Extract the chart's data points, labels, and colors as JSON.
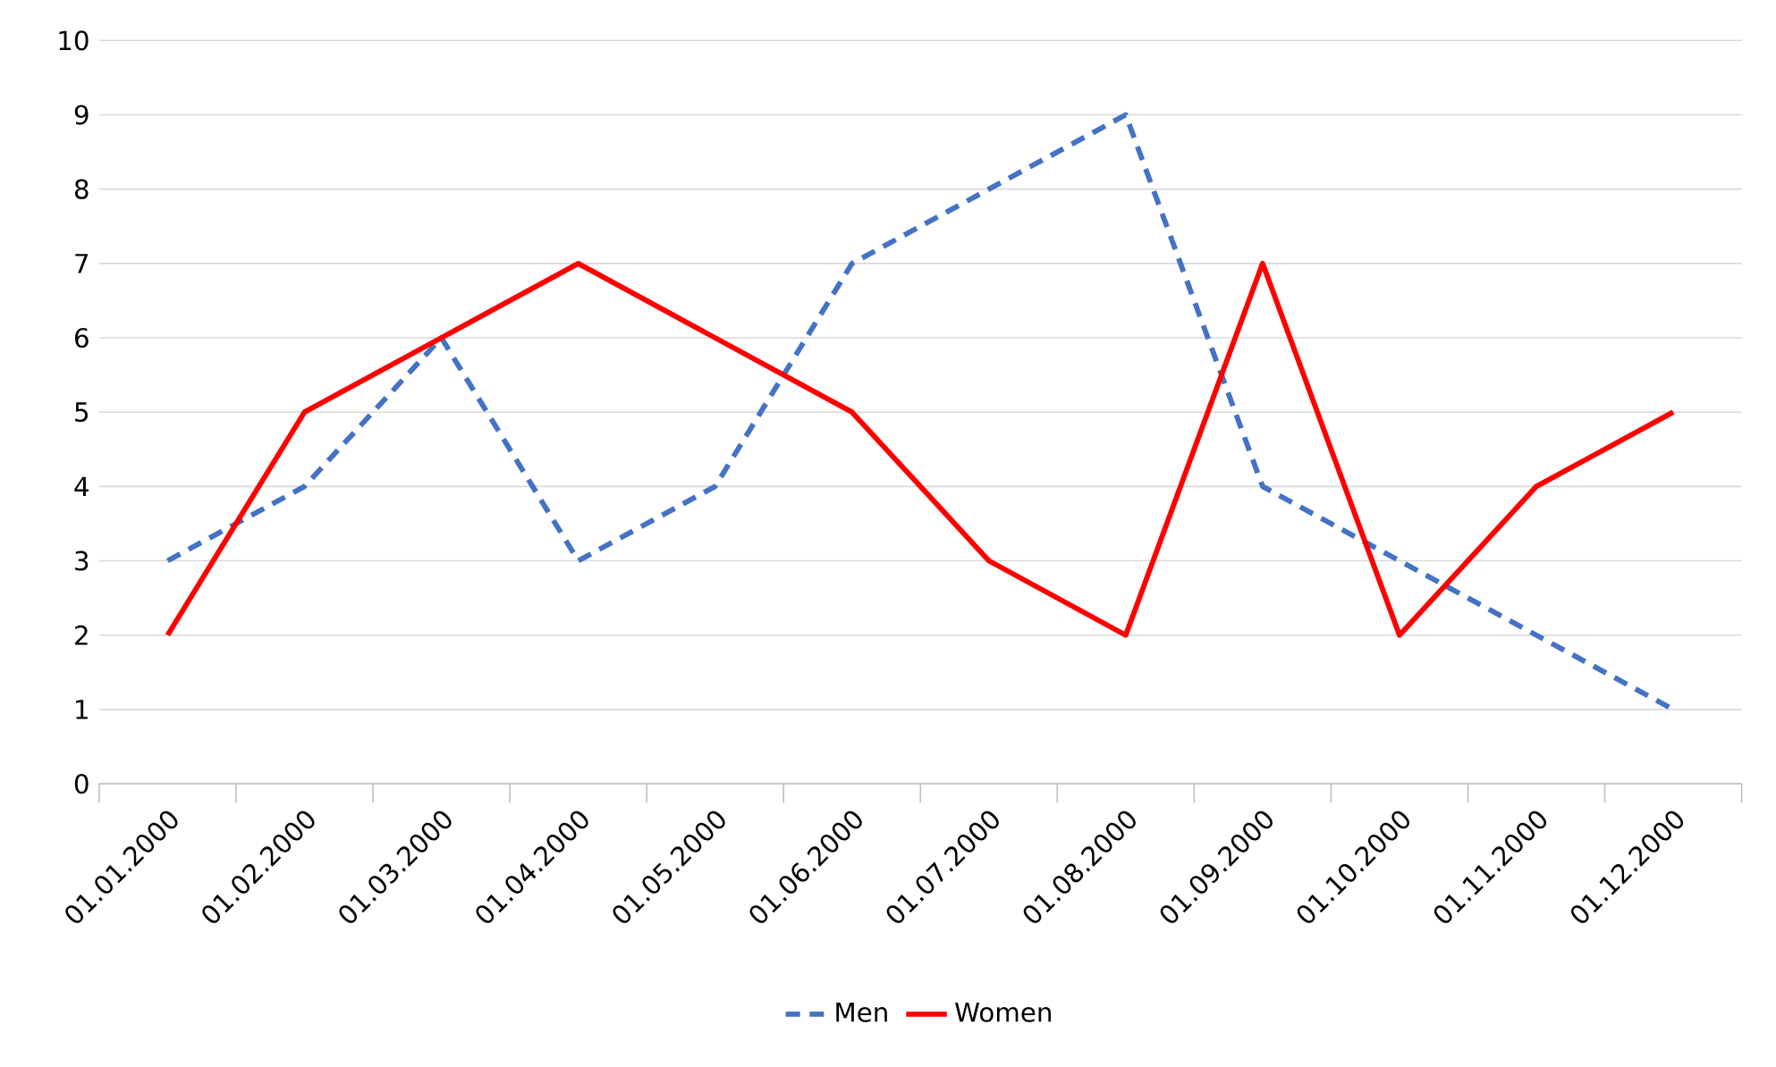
{
  "chart_data": {
    "type": "line",
    "categories": [
      "01.01.2000",
      "01.02.2000",
      "01.03.2000",
      "01.04.2000",
      "01.05.2000",
      "01.06.2000",
      "01.07.2000",
      "01.08.2000",
      "01.09.2000",
      "01.10.2000",
      "01.11.2000",
      "01.12.2000"
    ],
    "series": [
      {
        "name": "Men",
        "color": "#4472c4",
        "line_style": "dashed",
        "values": [
          3,
          4,
          6,
          3,
          4,
          7,
          8,
          9,
          4,
          3,
          2,
          1
        ]
      },
      {
        "name": "Women",
        "color": "#ff0000",
        "line_style": "solid",
        "values": [
          2,
          5,
          6,
          7,
          6,
          5,
          3,
          2,
          7,
          2,
          4,
          5
        ]
      }
    ],
    "ylim": [
      0,
      10
    ],
    "yticks": [
      0,
      1,
      2,
      3,
      4,
      5,
      6,
      7,
      8,
      9,
      10
    ],
    "grid": "y",
    "legend": "bottom"
  }
}
